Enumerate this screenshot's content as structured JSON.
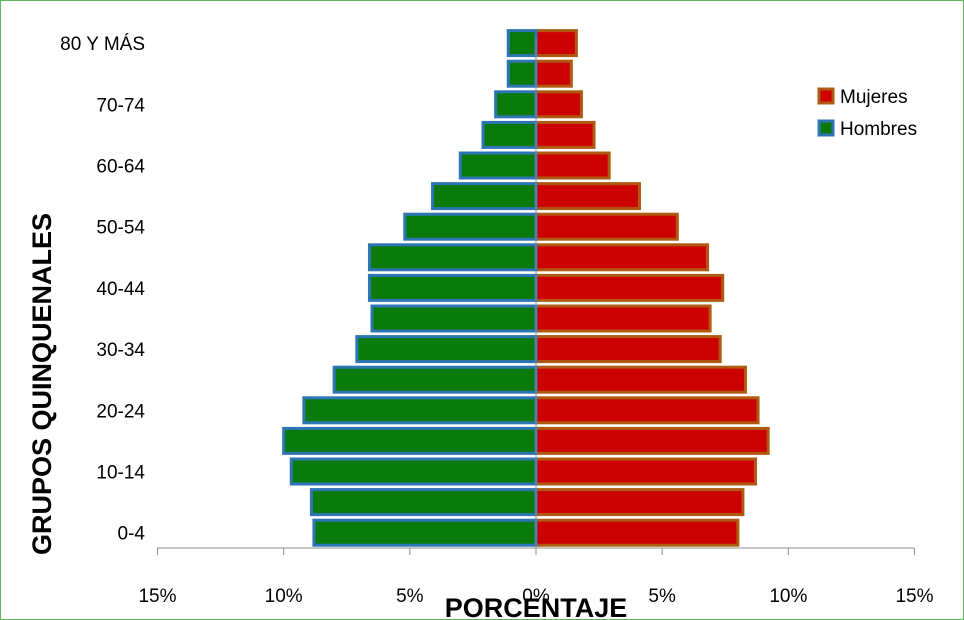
{
  "chart_data": {
    "type": "bar",
    "orientation": "horizontal-population-pyramid",
    "categories": [
      "0-4",
      "5-9",
      "10-14",
      "15-19",
      "20-24",
      "25-29",
      "30-34",
      "35-39",
      "40-44",
      "45-49",
      "50-54",
      "55-59",
      "60-64",
      "65-69",
      "70-74",
      "75-79",
      "80 Y MÁS"
    ],
    "category_labels_shown": [
      "0-4",
      "",
      "10-14",
      "",
      "20-24",
      "",
      "30-34",
      "",
      "40-44",
      "",
      "50-54",
      "",
      "60-64",
      "",
      "70-74",
      "",
      "80 Y MÁS"
    ],
    "series": [
      {
        "name": "Mujeres",
        "color": "#cc0000",
        "border": "#b05a10",
        "side": "right",
        "values": [
          8.0,
          8.2,
          8.7,
          9.2,
          8.8,
          8.3,
          7.3,
          6.9,
          7.4,
          6.8,
          5.6,
          4.1,
          2.9,
          2.3,
          1.8,
          1.4,
          1.6
        ]
      },
      {
        "name": "Hombres",
        "color": "#0a7a0a",
        "border": "#2e75b6",
        "side": "left",
        "values": [
          8.8,
          8.9,
          9.7,
          10.0,
          9.2,
          8.0,
          7.1,
          6.5,
          6.6,
          6.6,
          5.2,
          4.1,
          3.0,
          2.1,
          1.6,
          1.1,
          1.1
        ]
      }
    ],
    "xlim": [
      -15,
      15
    ],
    "x_ticks": [
      -15,
      -10,
      -5,
      0,
      5,
      10,
      15
    ],
    "x_tick_labels": [
      "15%",
      "10%",
      "5%",
      "0%",
      "5%",
      "10%",
      "15%"
    ],
    "xlabel": "PORCENTAJE",
    "ylabel": "GRUPOS QUINQUENALES",
    "legend_position": "top-right",
    "grid": false
  }
}
